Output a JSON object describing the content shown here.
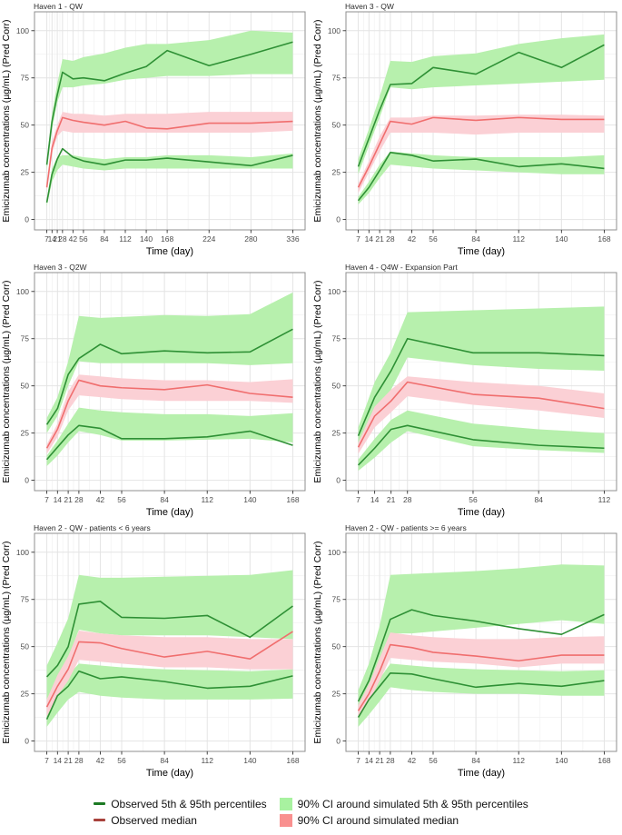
{
  "figure": {
    "xlabel": "Time (day)",
    "ylabel": "Emicizumab concentrations (µg/mL) (Pred Corr)"
  },
  "legend": {
    "observed_percentiles": "Observed 5th & 95th percentiles",
    "observed_median": "Observed median",
    "simulated_percentiles_ci": "90% CI around simulated 5th & 95th percentiles",
    "simulated_median_ci": "90% CI around simulated median"
  },
  "colors": {
    "observed_percentile_line": "#2e9035",
    "observed_median_line": "#f06e6e",
    "simulated_percentile_band": "#b7f0ad",
    "simulated_median_band": "#fbd0d5",
    "legend_percentile_line": "#1d7a24",
    "legend_median_line": "#a8423c",
    "legend_percentile_band": "#a8f2a0",
    "legend_median_band": "#f9908f",
    "grid_major": "#e4e4e4",
    "grid_minor": "#f1f1f1",
    "panel_border": "#8f8f8f",
    "tick_label": "#4d4d4d",
    "axis_title": "#000000"
  },
  "chart_data": [
    {
      "type": "line",
      "title": "Haven 1 - QW",
      "xlabel": "Time (day)",
      "ylabel": "Emicizumab concentrations (µg/mL) (Pred Corr)",
      "ylim": [
        0,
        100
      ],
      "yticks": [
        0,
        25,
        50,
        75,
        100
      ],
      "x": [
        7,
        14,
        21,
        28,
        42,
        56,
        84,
        112,
        140,
        168,
        224,
        280,
        336
      ],
      "series": [
        {
          "name": "observed_95th_percentile",
          "values": [
            29,
            52,
            66,
            78,
            74.5,
            75,
            73.5,
            77.5,
            81,
            89.5,
            81.5,
            87.5,
            94
          ]
        },
        {
          "name": "observed_median",
          "values": [
            17,
            38,
            47,
            54,
            52.5,
            51.5,
            50,
            52,
            48.5,
            48,
            51,
            51,
            52
          ]
        },
        {
          "name": "observed_5th_percentile",
          "values": [
            9,
            24,
            32,
            37.5,
            33,
            31,
            29,
            31.5,
            31.5,
            32.5,
            30.5,
            28.5,
            34
          ]
        },
        {
          "name": "ci90_sim_95th_lower",
          "values": [
            26,
            48,
            62,
            70,
            70,
            71,
            72,
            74,
            75,
            76,
            76,
            77,
            77
          ]
        },
        {
          "name": "ci90_sim_95th_upper",
          "values": [
            32,
            56,
            72,
            85,
            84,
            86,
            88,
            91,
            93,
            93,
            95,
            100,
            99
          ]
        },
        {
          "name": "ci90_sim_median_lower",
          "values": [
            15,
            35,
            44,
            47,
            46,
            46,
            46,
            46,
            46,
            46,
            46,
            46,
            47
          ]
        },
        {
          "name": "ci90_sim_median_upper",
          "values": [
            19,
            41,
            50,
            57,
            56,
            56,
            55,
            56,
            56,
            56,
            57,
            57,
            57
          ]
        },
        {
          "name": "ci90_sim_5th_lower",
          "values": [
            7,
            20,
            26,
            29,
            28,
            27,
            26,
            27,
            27,
            27,
            27,
            27,
            27
          ]
        },
        {
          "name": "ci90_sim_5th_upper",
          "values": [
            11,
            27,
            33,
            34,
            34,
            33,
            32,
            33,
            33,
            34,
            34,
            33,
            35
          ]
        }
      ]
    },
    {
      "type": "line",
      "title": "Haven 3 - QW",
      "xlabel": "Time (day)",
      "ylabel": "Emicizumab concentrations (µg/mL) (Pred Corr)",
      "ylim": [
        0,
        100
      ],
      "yticks": [
        0,
        25,
        50,
        75,
        100
      ],
      "x": [
        7,
        14,
        21,
        28,
        42,
        56,
        84,
        112,
        140,
        168
      ],
      "series": [
        {
          "name": "observed_95th_percentile",
          "values": [
            28,
            43,
            58,
            71.5,
            72,
            80.5,
            77,
            88.5,
            80.5,
            92.5
          ]
        },
        {
          "name": "observed_median",
          "values": [
            17,
            28,
            40,
            52,
            50.5,
            54,
            52.5,
            54,
            53,
            53
          ]
        },
        {
          "name": "observed_5th_percentile",
          "values": [
            10,
            17,
            26,
            35.5,
            34,
            31,
            32,
            28,
            29.5,
            27
          ]
        },
        {
          "name": "ci90_sim_95th_lower",
          "values": [
            24,
            39,
            54,
            70,
            69,
            70,
            71,
            72,
            73,
            74
          ]
        },
        {
          "name": "ci90_sim_95th_upper",
          "values": [
            32,
            48,
            65,
            84,
            83.5,
            86.5,
            88,
            93,
            96,
            98
          ]
        },
        {
          "name": "ci90_sim_median_lower",
          "values": [
            14,
            25,
            36,
            46,
            46,
            46,
            45,
            46,
            46,
            46
          ]
        },
        {
          "name": "ci90_sim_median_upper",
          "values": [
            19,
            31,
            44,
            54,
            54,
            55,
            55,
            55.5,
            55.5,
            55
          ]
        },
        {
          "name": "ci90_sim_5th_lower",
          "values": [
            8,
            14,
            22,
            29,
            28,
            27,
            26,
            25,
            24,
            24
          ]
        },
        {
          "name": "ci90_sim_5th_upper",
          "values": [
            12,
            20,
            29,
            36,
            35,
            34,
            33,
            33,
            33,
            34
          ]
        }
      ]
    },
    {
      "type": "line",
      "title": "Haven 3 - Q2W",
      "xlabel": "Time (day)",
      "ylabel": "Emicizumab concentrations (µg/mL) (Pred Corr)",
      "ylim": [
        0,
        100
      ],
      "yticks": [
        0,
        25,
        50,
        75,
        100
      ],
      "x": [
        7,
        14,
        21,
        28,
        42,
        56,
        84,
        112,
        140,
        168
      ],
      "series": [
        {
          "name": "observed_95th_percentile",
          "values": [
            29.5,
            38,
            56,
            64.5,
            72,
            67,
            68.5,
            67.5,
            68,
            80
          ]
        },
        {
          "name": "observed_median",
          "values": [
            17,
            27,
            42,
            53,
            50,
            49,
            48,
            50.5,
            46,
            44
          ]
        },
        {
          "name": "observed_5th_percentile",
          "values": [
            11,
            17.5,
            24,
            29,
            27.5,
            22,
            22,
            23,
            26,
            18.5
          ]
        },
        {
          "name": "ci90_sim_95th_lower",
          "values": [
            25,
            34,
            50,
            63,
            62,
            62,
            62,
            62,
            61,
            62
          ]
        },
        {
          "name": "ci90_sim_95th_upper",
          "values": [
            33,
            44,
            63,
            87,
            86,
            86.5,
            87.5,
            87,
            88,
            99.5
          ]
        },
        {
          "name": "ci90_sim_median_lower",
          "values": [
            14,
            23,
            37,
            45,
            44,
            43,
            42,
            42,
            42,
            41
          ]
        },
        {
          "name": "ci90_sim_median_upper",
          "values": [
            19,
            30,
            47,
            56,
            55,
            54,
            53,
            53,
            52,
            53.5
          ]
        },
        {
          "name": "ci90_sim_5th_lower",
          "values": [
            7.5,
            13,
            20,
            26,
            24,
            21,
            21,
            21.5,
            22,
            20
          ]
        },
        {
          "name": "ci90_sim_5th_upper",
          "values": [
            13,
            21,
            30,
            38.5,
            37,
            36,
            35,
            35,
            34,
            35.5
          ]
        }
      ]
    },
    {
      "type": "line",
      "title": "Haven 4 - Q4W - Expansion Part",
      "xlabel": "Time (day)",
      "ylabel": "Emicizumab concentrations (µg/mL) (Pred Corr)",
      "ylim": [
        0,
        100
      ],
      "yticks": [
        0,
        25,
        50,
        75,
        100
      ],
      "x": [
        7,
        14,
        21,
        28,
        56,
        84,
        112
      ],
      "series": [
        {
          "name": "observed_95th_percentile",
          "values": [
            23.5,
            44,
            58,
            75,
            67.5,
            67.5,
            66
          ]
        },
        {
          "name": "observed_median",
          "values": [
            17.5,
            34,
            42,
            52,
            45.5,
            43.5,
            38
          ]
        },
        {
          "name": "observed_5th_percentile",
          "values": [
            8,
            17,
            27,
            29,
            21.5,
            18.5,
            17
          ]
        },
        {
          "name": "ci90_sim_95th_lower",
          "values": [
            18,
            36,
            48,
            65,
            61,
            59,
            58
          ]
        },
        {
          "name": "ci90_sim_95th_upper",
          "values": [
            28,
            52,
            68,
            89,
            90,
            91,
            92
          ]
        },
        {
          "name": "ci90_sim_median_lower",
          "values": [
            14,
            28,
            36,
            44.5,
            40,
            37,
            33
          ]
        },
        {
          "name": "ci90_sim_median_upper",
          "values": [
            20,
            39,
            48,
            55,
            52,
            50,
            46
          ]
        },
        {
          "name": "ci90_sim_5th_lower",
          "values": [
            5,
            12,
            20,
            26,
            18,
            16,
            14.5
          ]
        },
        {
          "name": "ci90_sim_5th_upper",
          "values": [
            11,
            22,
            32,
            37,
            30,
            27,
            25
          ]
        }
      ]
    },
    {
      "type": "line",
      "title": "Haven 2 - QW - patients < 6 years",
      "xlabel": "Time (day)",
      "ylabel": "Emicizumab concentrations (µg/mL) (Pred Corr)",
      "ylim": [
        0,
        100
      ],
      "yticks": [
        0,
        25,
        50,
        75,
        100
      ],
      "x": [
        7,
        14,
        21,
        28,
        42,
        56,
        84,
        112,
        140,
        168
      ],
      "series": [
        {
          "name": "observed_95th_percentile",
          "values": [
            34,
            40,
            50,
            72.5,
            74,
            65.5,
            65,
            66.5,
            55,
            71.5
          ]
        },
        {
          "name": "observed_median",
          "values": [
            18,
            29,
            38,
            52.5,
            52,
            49,
            44.5,
            47.5,
            43.5,
            58
          ]
        },
        {
          "name": "observed_5th_percentile",
          "values": [
            11.5,
            24,
            29,
            37,
            33,
            34,
            31.5,
            28,
            29,
            34.5
          ]
        },
        {
          "name": "ci90_sim_95th_lower",
          "values": [
            22,
            33,
            44,
            59,
            57,
            56,
            56,
            56,
            55,
            54
          ]
        },
        {
          "name": "ci90_sim_95th_upper",
          "values": [
            40,
            52,
            65,
            88,
            86.5,
            86.5,
            87,
            87.5,
            88,
            90.5
          ]
        },
        {
          "name": "ci90_sim_median_lower",
          "values": [
            13,
            24,
            32,
            43,
            42,
            41,
            39,
            39,
            38,
            38
          ]
        },
        {
          "name": "ci90_sim_median_upper",
          "values": [
            22,
            35,
            45,
            58.5,
            57,
            56,
            55,
            55,
            54,
            54
          ]
        },
        {
          "name": "ci90_sim_5th_lower",
          "values": [
            7.5,
            15,
            22,
            26,
            24,
            23,
            22,
            22,
            22,
            22.5
          ]
        },
        {
          "name": "ci90_sim_5th_upper",
          "values": [
            16,
            27,
            35,
            41,
            40,
            39,
            38,
            37.5,
            37,
            38
          ]
        }
      ]
    },
    {
      "type": "line",
      "title": "Haven 2 - QW - patients >= 6 years",
      "xlabel": "Time (day)",
      "ylabel": "Emicizumab concentrations (µg/mL) (Pred Corr)",
      "ylim": [
        0,
        100
      ],
      "yticks": [
        0,
        25,
        50,
        75,
        100
      ],
      "x": [
        7,
        14,
        21,
        28,
        42,
        56,
        84,
        112,
        140,
        168
      ],
      "series": [
        {
          "name": "observed_95th_percentile",
          "values": [
            21,
            32,
            48,
            64.5,
            69.5,
            66.5,
            63.5,
            59.5,
            56.5,
            67
          ]
        },
        {
          "name": "observed_median",
          "values": [
            16,
            25,
            37,
            51,
            49.5,
            47,
            45,
            42.5,
            45.5,
            45.5
          ]
        },
        {
          "name": "observed_5th_percentile",
          "values": [
            12.5,
            22,
            29,
            36,
            35.5,
            33,
            28.5,
            30.5,
            29,
            32
          ]
        },
        {
          "name": "ci90_sim_95th_lower",
          "values": [
            15,
            26,
            40,
            57,
            57,
            58,
            60,
            62,
            64,
            62
          ]
        },
        {
          "name": "ci90_sim_95th_upper",
          "values": [
            27,
            41,
            61,
            88,
            88.5,
            89,
            90,
            91.5,
            93.5,
            93
          ]
        },
        {
          "name": "ci90_sim_median_lower",
          "values": [
            12,
            21,
            32,
            44,
            43,
            42,
            41,
            39,
            41,
            41
          ]
        },
        {
          "name": "ci90_sim_median_upper",
          "values": [
            19,
            30,
            44,
            57.5,
            56,
            55,
            54,
            54,
            55,
            55.5
          ]
        },
        {
          "name": "ci90_sim_5th_lower",
          "values": [
            7.5,
            14,
            21,
            28.5,
            27,
            26,
            25,
            25,
            24,
            24
          ]
        },
        {
          "name": "ci90_sim_5th_upper",
          "values": [
            15,
            25,
            33,
            41,
            40,
            39,
            38,
            37.5,
            37,
            37.5
          ]
        }
      ]
    }
  ]
}
